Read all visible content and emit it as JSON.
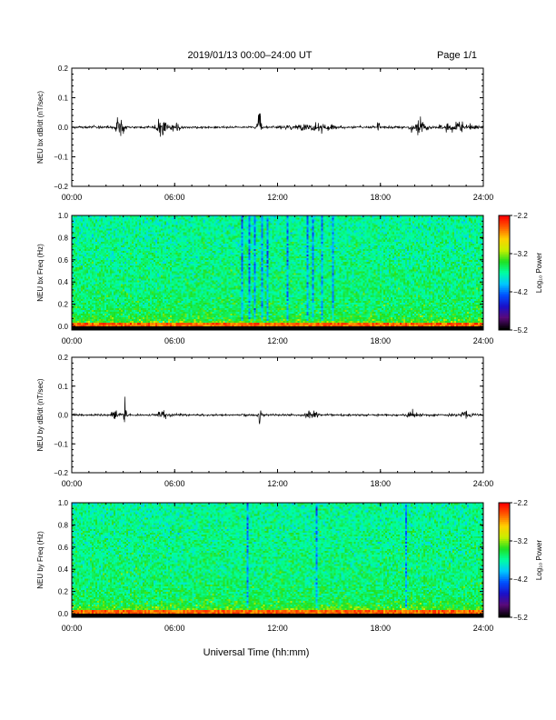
{
  "header": {
    "title": "2019/01/13  00:00–24:00 UT",
    "page": "Page 1/1"
  },
  "footer": {
    "xlabel": "Universal Time (hh:mm)"
  },
  "colors": {
    "trace": "#000000",
    "colormap": [
      "#000000",
      "#5a0a7a",
      "#1a10c8",
      "#0050ff",
      "#00c8ff",
      "#00ffa0",
      "#20e020",
      "#c8f000",
      "#ffd000",
      "#ff6000",
      "#ff0000"
    ]
  },
  "chart_data": [
    {
      "type": "line",
      "name": "bx-dbdt",
      "ylabel": "NEU bx dB/dt (nT/sec)",
      "ylim": [
        -0.2,
        0.2
      ],
      "yticks": [
        "0.2",
        "0.1",
        "0.0",
        "−0.1",
        "−0.2"
      ],
      "xticks": [
        "00:00",
        "06:00",
        "12:00",
        "18:00",
        "24:00"
      ],
      "xlim_hours": [
        0,
        24
      ],
      "baseline": 0.0,
      "noise_amplitude": 0.004,
      "bursts": [
        {
          "t": 2.8,
          "amp": 0.03,
          "width": 0.25
        },
        {
          "t": 5.2,
          "amp": 0.045,
          "width": 0.25
        },
        {
          "t": 6.0,
          "amp": 0.015,
          "width": 0.3
        },
        {
          "t": 10.95,
          "amp": 0.045,
          "width": 0.12
        },
        {
          "t": 14.0,
          "amp": 0.015,
          "width": 1.2
        },
        {
          "t": 17.9,
          "amp": 0.03,
          "width": 0.1
        },
        {
          "t": 20.2,
          "amp": 0.035,
          "width": 0.35
        },
        {
          "t": 22.5,
          "amp": 0.012,
          "width": 1.0
        }
      ]
    },
    {
      "type": "heatmap",
      "name": "bx-freq",
      "ylabel": "NEU bx Freq (Hz)",
      "ylim": [
        0.0,
        1.0
      ],
      "yticks": [
        "1.0",
        "0.8",
        "0.6",
        "0.4",
        "0.2",
        "0.0"
      ],
      "xticks": [
        "00:00",
        "06:00",
        "12:00",
        "18:00",
        "24:00"
      ],
      "xlim_hours": [
        0,
        24
      ],
      "colorbar": {
        "label": "Log₁₀ Power",
        "range": [
          -5.2,
          -2.2
        ],
        "ticks": [
          "−2.2",
          "−3.2",
          "−4.2",
          "−5.2"
        ]
      },
      "dark_stripes_hours": [
        9.9,
        10.3,
        10.6,
        11.0,
        11.4,
        12.5,
        13.7,
        14.0,
        14.6,
        15.2
      ]
    },
    {
      "type": "line",
      "name": "by-dbdt",
      "ylabel": "NEU by dB/dt (nT/sec)",
      "ylim": [
        -0.2,
        0.2
      ],
      "yticks": [
        "0.2",
        "0.1",
        "0.0",
        "−0.1",
        "−0.2"
      ],
      "xticks": [
        "00:00",
        "06:00",
        "12:00",
        "18:00",
        "24:00"
      ],
      "xlim_hours": [
        0,
        24
      ],
      "baseline": 0.0,
      "noise_amplitude": 0.004,
      "bursts": [
        {
          "t": 2.5,
          "amp": 0.02,
          "width": 0.2
        },
        {
          "t": 3.1,
          "amp": 0.06,
          "width": 0.08
        },
        {
          "t": 5.3,
          "amp": 0.015,
          "width": 0.3
        },
        {
          "t": 10.95,
          "amp": 0.04,
          "width": 0.1
        },
        {
          "t": 14.0,
          "amp": 0.015,
          "width": 0.3
        },
        {
          "t": 19.8,
          "amp": 0.012,
          "width": 0.3
        },
        {
          "t": 23.0,
          "amp": 0.01,
          "width": 0.5
        }
      ]
    },
    {
      "type": "heatmap",
      "name": "by-freq",
      "ylabel": "NEU by Freq (Hz)",
      "ylim": [
        0.0,
        1.0
      ],
      "yticks": [
        "1.0",
        "0.8",
        "0.6",
        "0.4",
        "0.2",
        "0.0"
      ],
      "xticks": [
        "00:00",
        "06:00",
        "12:00",
        "18:00",
        "24:00"
      ],
      "xlim_hours": [
        0,
        24
      ],
      "colorbar": {
        "label": "Log₁₀ Power",
        "range": [
          -5.2,
          -2.2
        ],
        "ticks": [
          "−2.2",
          "−3.2",
          "−4.2",
          "−5.2"
        ]
      },
      "dark_stripes_hours": [
        10.2,
        14.2,
        19.4
      ]
    }
  ]
}
